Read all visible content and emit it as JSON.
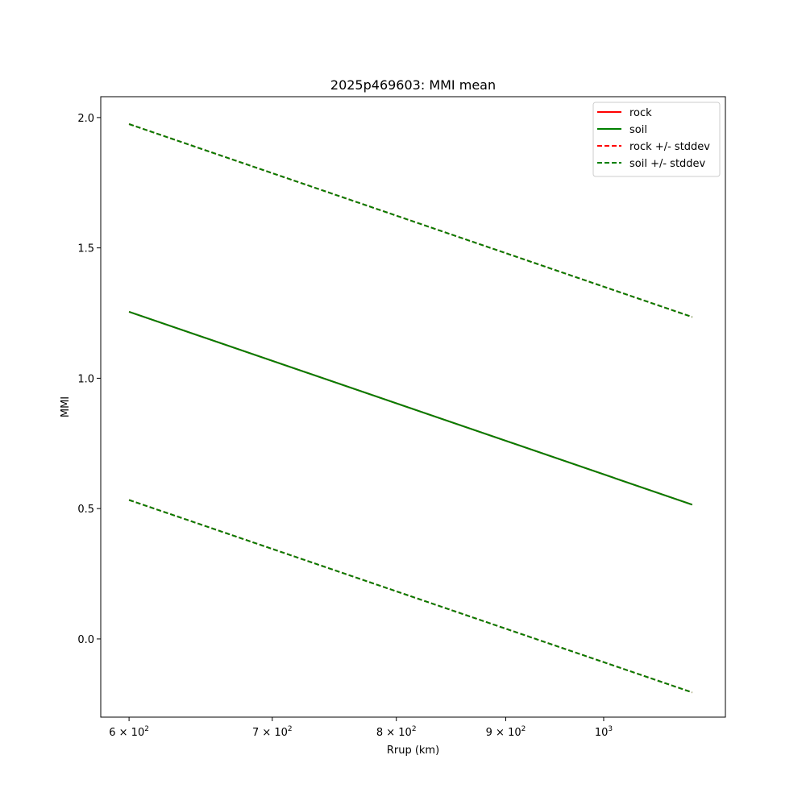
{
  "chart_data": {
    "type": "line",
    "title": "2025p469603: MMI mean",
    "xlabel": "Rrup (km)",
    "ylabel": "MMI",
    "xscale": "log",
    "xlim": [
      582,
      1140
    ],
    "ylim": [
      -0.3,
      2.08
    ],
    "grid": false,
    "legend_placement": "top-right",
    "x_ticks": [
      {
        "value": 600,
        "base": "6 × 10",
        "exp": "2"
      },
      {
        "value": 700,
        "base": "7 × 10",
        "exp": "2"
      },
      {
        "value": 800,
        "base": "8 × 10",
        "exp": "2"
      },
      {
        "value": 900,
        "base": "9 × 10",
        "exp": "2"
      },
      {
        "value": 1000,
        "base": "10",
        "exp": "3"
      }
    ],
    "y_ticks": [
      {
        "value": 0.0,
        "label": "0.0"
      },
      {
        "value": 0.5,
        "label": "0.5"
      },
      {
        "value": 1.0,
        "label": "1.0"
      },
      {
        "value": 1.5,
        "label": "1.5"
      },
      {
        "value": 2.0,
        "label": "2.0"
      }
    ],
    "series": [
      {
        "name": "rock",
        "color": "#ff0000",
        "style": "solid",
        "x": [
          600,
          1100
        ],
        "y": [
          1.255,
          0.515
        ]
      },
      {
        "name": "soil",
        "color": "#008000",
        "style": "solid",
        "x": [
          600,
          1100
        ],
        "y": [
          1.255,
          0.515
        ]
      },
      {
        "name": "rock +/- stddev",
        "color": "#ff0000",
        "style": "dashed",
        "x": [
          600,
          1100
        ],
        "y": [
          1.975,
          1.235
        ]
      },
      {
        "name": "rock +/- stddev",
        "color": "#ff0000",
        "style": "dashed",
        "x": [
          600,
          1100
        ],
        "y": [
          0.533,
          -0.205
        ],
        "legend": false
      },
      {
        "name": "soil +/- stddev",
        "color": "#008000",
        "style": "dashed",
        "x": [
          600,
          1100
        ],
        "y": [
          1.975,
          1.235
        ]
      },
      {
        "name": "soil +/- stddev",
        "color": "#008000",
        "style": "dashed",
        "x": [
          600,
          1100
        ],
        "y": [
          0.533,
          -0.205
        ],
        "legend": false
      }
    ]
  }
}
